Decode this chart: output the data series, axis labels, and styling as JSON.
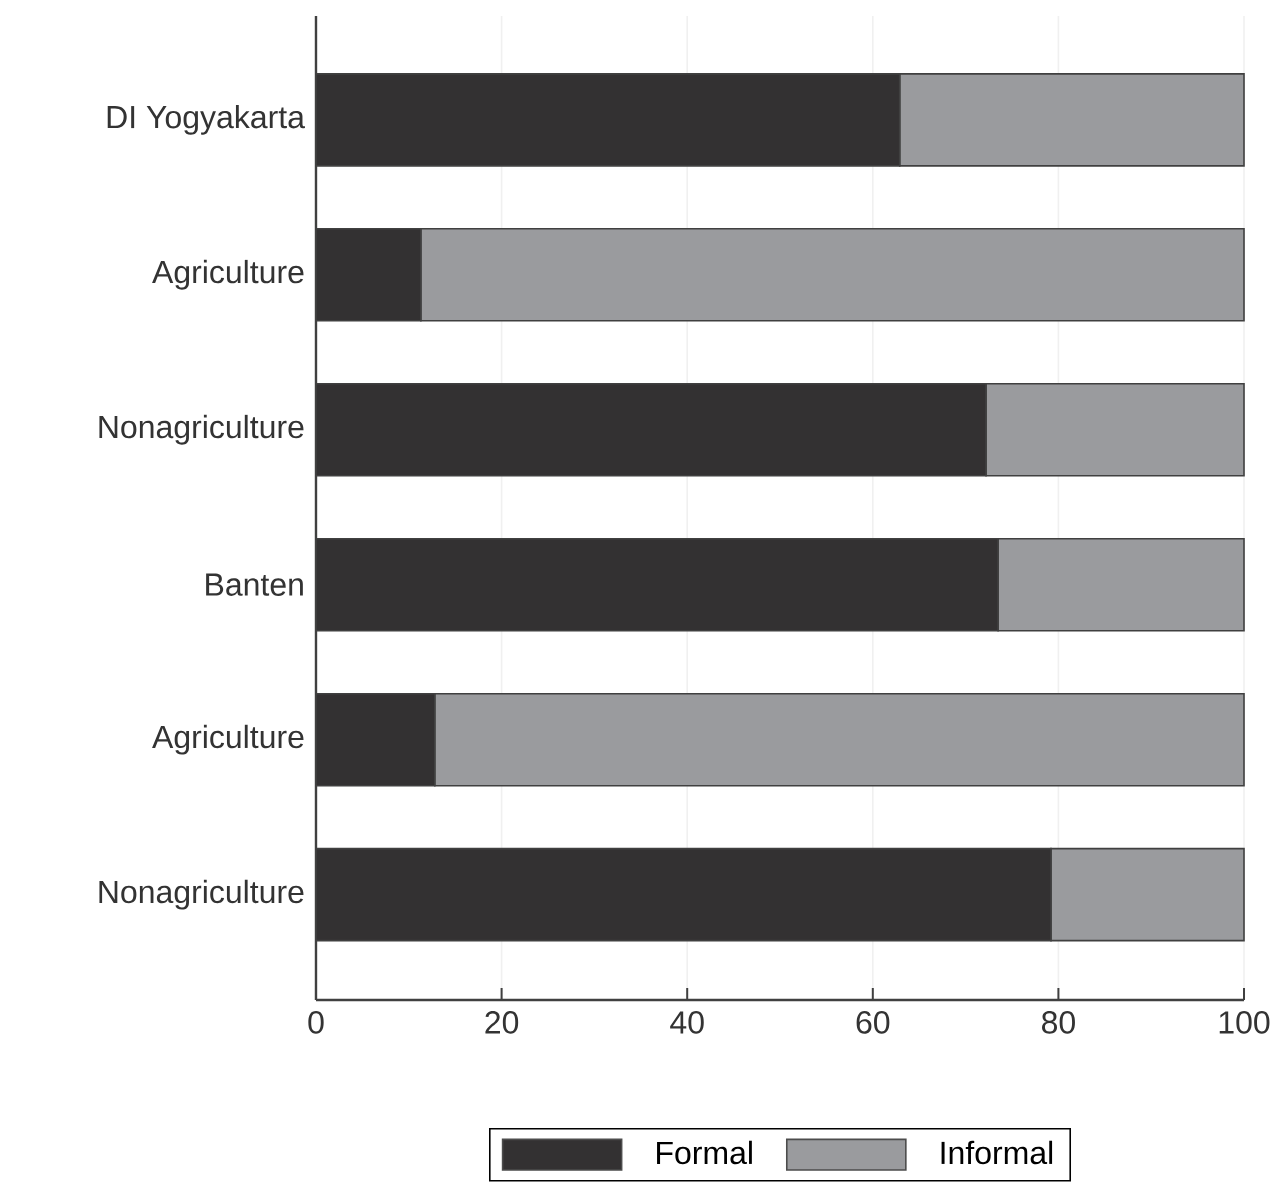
{
  "chart_data": {
    "type": "bar",
    "orientation": "horizontal",
    "stacked": true,
    "categories": [
      "DI Yogyakarta",
      "Agriculture",
      "Nonagriculture",
      "Banten",
      "Agriculture",
      "Nonagriculture"
    ],
    "series": [
      {
        "name": "Formal",
        "color": "#333132",
        "values": [
          62.9,
          11.3,
          72.2,
          73.5,
          12.8,
          79.2
        ]
      },
      {
        "name": "Informal",
        "color": "#9a9b9e",
        "values": [
          37.1,
          88.7,
          27.8,
          26.5,
          87.2,
          20.8
        ]
      }
    ],
    "xlim": [
      0,
      100
    ],
    "xticks": [
      0,
      20,
      40,
      60,
      80,
      100
    ],
    "grid": "x",
    "legend": "bottom"
  }
}
